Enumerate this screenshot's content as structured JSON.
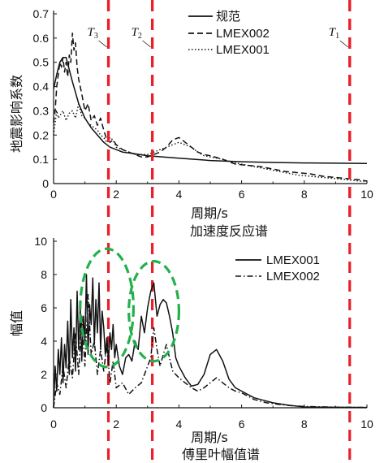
{
  "chart_data": [
    {
      "type": "line",
      "title": "加速度反应谱",
      "xlabel": "周期/s",
      "ylabel": "地震影响系数",
      "xlim": [
        0,
        10
      ],
      "ylim": [
        0,
        0.7
      ],
      "xticks": [
        "0",
        "2",
        "4",
        "6",
        "8",
        "10"
      ],
      "yticks": [
        "0",
        "0.1",
        "0.2",
        "0.3",
        "0.4",
        "0.5",
        "0.6",
        "0.7"
      ],
      "legend_position": "top-center",
      "vertical_markers": [
        {
          "label": "T",
          "sub": "3",
          "x": 1.75
        },
        {
          "label": "T",
          "sub": "2",
          "x": 3.15
        },
        {
          "label": "T",
          "sub": "1",
          "x": 9.45
        }
      ],
      "marker_color": "#e8202a",
      "series": [
        {
          "name": "规范",
          "style": "solid",
          "x": [
            0,
            0.1,
            0.2,
            0.3,
            0.4,
            0.5,
            0.6,
            0.8,
            1.0,
            1.2,
            1.4,
            1.6,
            1.8,
            2.0,
            2.2,
            2.5,
            3.0,
            3.5,
            4.0,
            5.0,
            6.0,
            7.0,
            8.0,
            9.0,
            10.0
          ],
          "y": [
            0.39,
            0.45,
            0.5,
            0.52,
            0.52,
            0.47,
            0.42,
            0.33,
            0.27,
            0.23,
            0.2,
            0.17,
            0.15,
            0.14,
            0.13,
            0.125,
            0.115,
            0.11,
            0.105,
            0.095,
            0.09,
            0.087,
            0.085,
            0.084,
            0.083
          ]
        },
        {
          "name": "LMEX002",
          "style": "dashed",
          "x": [
            0,
            0.05,
            0.1,
            0.15,
            0.2,
            0.25,
            0.3,
            0.35,
            0.4,
            0.45,
            0.5,
            0.55,
            0.6,
            0.65,
            0.7,
            0.75,
            0.8,
            0.9,
            1.0,
            1.1,
            1.2,
            1.3,
            1.4,
            1.5,
            1.6,
            1.7,
            1.8,
            1.9,
            2.0,
            2.2,
            2.4,
            2.6,
            2.8,
            3.0,
            3.2,
            3.4,
            3.6,
            3.8,
            4.0,
            4.2,
            4.4,
            4.6,
            4.8,
            5.0,
            5.4,
            5.8,
            6.2,
            6.6,
            7.0,
            7.4,
            7.8,
            8.2,
            8.6,
            9.0,
            9.4,
            9.8,
            10.0
          ],
          "y": [
            0.25,
            0.3,
            0.4,
            0.45,
            0.5,
            0.48,
            0.52,
            0.46,
            0.5,
            0.44,
            0.53,
            0.5,
            0.62,
            0.55,
            0.58,
            0.48,
            0.43,
            0.37,
            0.3,
            0.33,
            0.26,
            0.28,
            0.24,
            0.27,
            0.22,
            0.18,
            0.17,
            0.18,
            0.16,
            0.14,
            0.13,
            0.12,
            0.11,
            0.11,
            0.12,
            0.13,
            0.15,
            0.18,
            0.19,
            0.17,
            0.15,
            0.13,
            0.12,
            0.115,
            0.1,
            0.08,
            0.075,
            0.07,
            0.06,
            0.05,
            0.045,
            0.04,
            0.03,
            0.025,
            0.02,
            0.015,
            0.01
          ]
        },
        {
          "name": "LMEX001",
          "style": "dotted",
          "x": [
            0,
            0.05,
            0.1,
            0.15,
            0.2,
            0.3,
            0.4,
            0.5,
            0.6,
            0.7,
            0.8,
            0.9,
            1.0,
            1.1,
            1.2,
            1.3,
            1.4,
            1.5,
            1.6,
            1.7,
            1.8,
            1.9,
            2.0,
            2.2,
            2.4,
            2.6,
            2.8,
            3.0,
            3.2,
            3.4,
            3.6,
            3.8,
            4.0,
            4.2,
            4.4,
            4.6,
            4.8,
            5.0,
            5.4,
            5.8,
            6.2,
            6.6,
            7.0,
            7.4,
            7.8,
            8.2,
            8.6,
            9.0,
            9.4,
            9.8,
            10.0
          ],
          "y": [
            0.2,
            0.25,
            0.3,
            0.27,
            0.28,
            0.3,
            0.26,
            0.29,
            0.3,
            0.27,
            0.33,
            0.28,
            0.27,
            0.25,
            0.24,
            0.23,
            0.22,
            0.2,
            0.19,
            0.17,
            0.19,
            0.18,
            0.15,
            0.14,
            0.13,
            0.12,
            0.12,
            0.12,
            0.13,
            0.14,
            0.15,
            0.16,
            0.17,
            0.16,
            0.15,
            0.13,
            0.115,
            0.11,
            0.1,
            0.085,
            0.075,
            0.065,
            0.055,
            0.045,
            0.035,
            0.03,
            0.025,
            0.02,
            0.015,
            0.01,
            0.01
          ]
        }
      ]
    },
    {
      "type": "line",
      "title": "傅里叶幅值谱",
      "xlabel": "周期/s",
      "ylabel": "幅值",
      "xlim": [
        0,
        10
      ],
      "ylim": [
        0,
        10
      ],
      "xticks": [
        "0",
        "2",
        "4",
        "6",
        "8",
        "10"
      ],
      "yticks": [
        "0",
        "2",
        "4",
        "6",
        "8",
        "10"
      ],
      "legend_position": "top-right",
      "vertical_markers": [
        {
          "x": 1.75
        },
        {
          "x": 3.15
        },
        {
          "x": 9.45
        }
      ],
      "marker_color": "#e8202a",
      "highlight_ellipses": [
        {
          "cx": 1.7,
          "cy": 6.0,
          "rx": 0.85,
          "ry": 3.55
        },
        {
          "cx": 3.2,
          "cy": 5.8,
          "rx": 0.8,
          "ry": 3.0
        }
      ],
      "highlight_color": "#22b14c",
      "series": [
        {
          "name": "LMEX001",
          "style": "solid",
          "x": [
            0,
            0.05,
            0.1,
            0.15,
            0.2,
            0.25,
            0.3,
            0.35,
            0.4,
            0.45,
            0.5,
            0.55,
            0.6,
            0.65,
            0.7,
            0.75,
            0.8,
            0.85,
            0.9,
            0.95,
            1.0,
            1.05,
            1.1,
            1.15,
            1.2,
            1.25,
            1.3,
            1.35,
            1.4,
            1.45,
            1.5,
            1.55,
            1.6,
            1.65,
            1.7,
            1.75,
            1.8,
            1.85,
            1.9,
            1.95,
            2.0,
            2.1,
            2.2,
            2.3,
            2.4,
            2.5,
            2.6,
            2.7,
            2.8,
            2.9,
            3.0,
            3.1,
            3.2,
            3.3,
            3.4,
            3.5,
            3.6,
            3.7,
            3.8,
            3.9,
            4.0,
            4.2,
            4.4,
            4.6,
            4.8,
            5.0,
            5.2,
            5.4,
            5.6,
            5.8,
            6.0,
            6.2,
            6.4,
            6.6,
            6.8,
            7.0,
            7.5,
            8.0,
            9.0,
            10.0
          ],
          "y": [
            0,
            2.5,
            1.0,
            3.5,
            2.0,
            4.2,
            1.5,
            3.8,
            2.4,
            5.2,
            2.0,
            6.5,
            3.0,
            4.8,
            2.2,
            7.0,
            3.5,
            6.0,
            2.8,
            5.5,
            4.0,
            8.0,
            3.2,
            6.2,
            5.0,
            7.8,
            3.8,
            6.5,
            4.5,
            7.5,
            3.5,
            5.8,
            4.8,
            3.2,
            4.2,
            2.8,
            4.5,
            3.5,
            5.0,
            3.0,
            3.8,
            2.5,
            2.0,
            3.0,
            3.2,
            2.8,
            4.0,
            3.5,
            5.5,
            4.5,
            6.0,
            7.0,
            7.5,
            5.5,
            6.2,
            6.5,
            6.3,
            5.5,
            4.5,
            3.0,
            2.5,
            1.8,
            1.3,
            1.4,
            2.0,
            3.2,
            3.5,
            2.8,
            1.7,
            1.2,
            1.0,
            0.8,
            0.6,
            0.5,
            0.4,
            0.3,
            0.15,
            0.05,
            0.03,
            0.02
          ]
        },
        {
          "name": "LMEX002",
          "style": "dashdot",
          "x": [
            0,
            0.1,
            0.2,
            0.3,
            0.4,
            0.5,
            0.6,
            0.7,
            0.8,
            0.9,
            1.0,
            1.1,
            1.2,
            1.3,
            1.4,
            1.5,
            1.6,
            1.7,
            1.8,
            1.9,
            2.0,
            2.2,
            2.4,
            2.6,
            2.8,
            3.0,
            3.1,
            3.2,
            3.3,
            3.4,
            3.5,
            3.6,
            3.7,
            3.8,
            3.9,
            4.0,
            4.2,
            4.4,
            4.6,
            4.8,
            5.0,
            5.2,
            5.4,
            5.6,
            5.8,
            6.0,
            6.2,
            6.4,
            6.8,
            7.2,
            7.6,
            8.0,
            9.0,
            10.0
          ],
          "y": [
            0,
            1.5,
            0.8,
            2.5,
            1.2,
            3.0,
            1.8,
            4.5,
            2.0,
            5.5,
            2.5,
            6.8,
            3.2,
            4.0,
            2.0,
            3.5,
            2.2,
            3.8,
            1.5,
            2.8,
            1.2,
            1.5,
            0.8,
            1.2,
            1.5,
            2.5,
            3.0,
            4.8,
            3.5,
            2.5,
            3.2,
            3.8,
            3.0,
            2.2,
            2.0,
            1.8,
            1.5,
            1.2,
            1.0,
            1.2,
            1.5,
            1.8,
            1.5,
            1.2,
            1.0,
            0.9,
            0.7,
            0.5,
            0.3,
            0.2,
            0.12,
            0.08,
            0.04,
            0.02
          ]
        }
      ]
    }
  ]
}
